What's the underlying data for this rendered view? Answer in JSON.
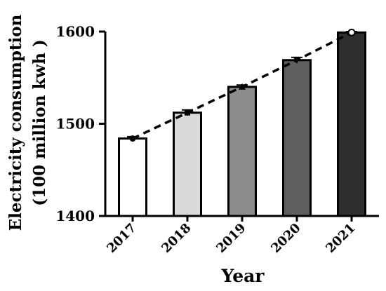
{
  "chart_data": {
    "type": "bar",
    "title": "",
    "xlabel": "Year",
    "ylabel_line1": "Electricity  consumption",
    "ylabel_line2": "(100 million kwh )",
    "categories": [
      "2017",
      "2018",
      "2019",
      "2020",
      "2021"
    ],
    "values": [
      1484,
      1512,
      1540,
      1569,
      1599
    ],
    "error": [
      2,
      3,
      2,
      3,
      1
    ],
    "bar_colors": [
      "#ffffff",
      "#d9d9d9",
      "#8c8c8c",
      "#5f5f5f",
      "#2e2e2e"
    ],
    "trend_markers": [
      "circle",
      "square",
      "triangle-up",
      "triangle-down",
      "circle-open"
    ],
    "trend_line": "dashed",
    "ylim": [
      1400,
      1600
    ],
    "yticks": [
      1400,
      1500,
      1600
    ],
    "grid": false,
    "legend": "none"
  }
}
